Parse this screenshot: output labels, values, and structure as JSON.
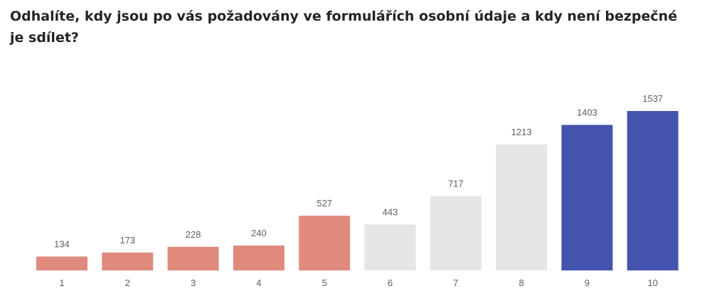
{
  "chart_data": {
    "type": "bar",
    "title": "Odhalíte, kdy jsou po vás požadovány ve formulářích osobní údaje a kdy není bezpečné je sdílet?",
    "xlabel": "",
    "ylabel": "",
    "categories": [
      "1",
      "2",
      "3",
      "4",
      "5",
      "6",
      "7",
      "8",
      "9",
      "10"
    ],
    "values": [
      134,
      173,
      228,
      240,
      527,
      443,
      717,
      1213,
      1403,
      1537
    ],
    "bar_colors": [
      "#E08A7E",
      "#E08A7E",
      "#E08A7E",
      "#E08A7E",
      "#E08A7E",
      "#E6E6E6",
      "#E6E6E6",
      "#E6E6E6",
      "#4453AE",
      "#4453AE"
    ],
    "ylim": [
      0,
      1537
    ],
    "grid": false,
    "data_labels": true
  }
}
